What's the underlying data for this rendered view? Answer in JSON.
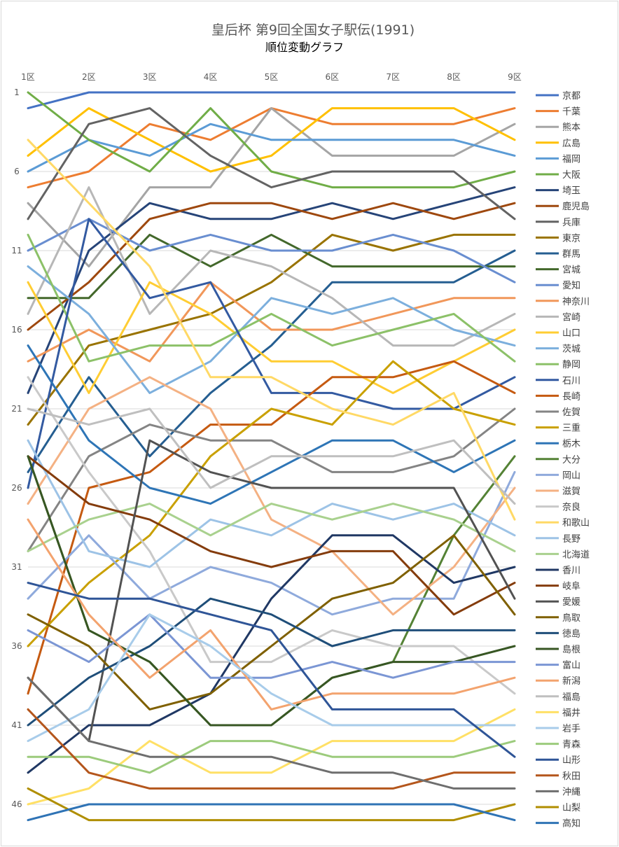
{
  "chart_data": {
    "type": "line",
    "title": "皇后杯 第9回全国女子駅伝(1991)",
    "subtitle": "順位変動グラフ",
    "categories": [
      "1区",
      "2区",
      "3区",
      "4区",
      "5区",
      "6区",
      "7区",
      "8区",
      "9区"
    ],
    "y_ticks": [
      "1",
      "6",
      "11",
      "16",
      "21",
      "26",
      "31",
      "36",
      "41",
      "46"
    ],
    "ylim": [
      1,
      47
    ],
    "y_reversed": true,
    "grid": true,
    "legend_position": "right",
    "series": [
      {
        "name": "京都",
        "color": "#4472C4",
        "values": [
          2,
          1,
          1,
          1,
          1,
          1,
          1,
          1,
          1
        ]
      },
      {
        "name": "千葉",
        "color": "#ED7D31",
        "values": [
          7,
          6,
          3,
          4,
          2,
          3,
          3,
          3,
          2
        ]
      },
      {
        "name": "熊本",
        "color": "#A5A5A5",
        "values": [
          8,
          12,
          7,
          7,
          2,
          5,
          5,
          5,
          3
        ]
      },
      {
        "name": "広島",
        "color": "#FFC000",
        "values": [
          5,
          2,
          4,
          6,
          5,
          2,
          2,
          2,
          4
        ]
      },
      {
        "name": "福岡",
        "color": "#5B9BD5",
        "values": [
          6,
          4,
          5,
          3,
          4,
          4,
          4,
          4,
          5
        ]
      },
      {
        "name": "大阪",
        "color": "#70AD47",
        "values": [
          1,
          4,
          6,
          2,
          6,
          7,
          7,
          7,
          6
        ]
      },
      {
        "name": "埼玉",
        "color": "#264478",
        "values": [
          20,
          11,
          8,
          9,
          9,
          8,
          9,
          8,
          7
        ]
      },
      {
        "name": "鹿児島",
        "color": "#9E480E",
        "values": [
          16,
          13,
          9,
          8,
          8,
          9,
          8,
          9,
          8
        ]
      },
      {
        "name": "兵庫",
        "color": "#636363",
        "values": [
          9,
          3,
          2,
          5,
          7,
          6,
          6,
          6,
          9
        ]
      },
      {
        "name": "東京",
        "color": "#997300",
        "values": [
          22,
          17,
          16,
          15,
          13,
          10,
          11,
          10,
          10
        ]
      },
      {
        "name": "群馬",
        "color": "#255E91",
        "values": [
          25,
          19,
          24,
          20,
          17,
          13,
          13,
          13,
          11
        ]
      },
      {
        "name": "宮城",
        "color": "#43682B",
        "values": [
          14,
          14,
          10,
          12,
          10,
          12,
          12,
          12,
          12
        ]
      },
      {
        "name": "愛知",
        "color": "#698ED0",
        "values": [
          11,
          9,
          11,
          10,
          11,
          11,
          10,
          11,
          13
        ]
      },
      {
        "name": "神奈川",
        "color": "#F1975A",
        "values": [
          18,
          16,
          18,
          13,
          16,
          16,
          15,
          14,
          14
        ]
      },
      {
        "name": "宮崎",
        "color": "#B7B7B7",
        "values": [
          15,
          7,
          15,
          11,
          12,
          14,
          17,
          17,
          15
        ]
      },
      {
        "name": "山口",
        "color": "#FFCD33",
        "values": [
          13,
          20,
          13,
          15,
          18,
          18,
          20,
          18,
          16
        ]
      },
      {
        "name": "茨城",
        "color": "#7CAFDD",
        "values": [
          12,
          15,
          20,
          18,
          14,
          15,
          14,
          16,
          17
        ]
      },
      {
        "name": "静岡",
        "color": "#8CC168",
        "values": [
          10,
          18,
          17,
          17,
          15,
          17,
          16,
          15,
          18
        ]
      },
      {
        "name": "石川",
        "color": "#335AA1",
        "values": [
          26,
          9,
          14,
          13,
          20,
          20,
          21,
          21,
          19
        ]
      },
      {
        "name": "長崎",
        "color": "#C55A11",
        "values": [
          39,
          26,
          25,
          22,
          22,
          19,
          19,
          18,
          20
        ]
      },
      {
        "name": "佐賀",
        "color": "#848484",
        "values": [
          30,
          24,
          22,
          23,
          23,
          25,
          25,
          24,
          21
        ]
      },
      {
        "name": "三重",
        "color": "#C9A000",
        "values": [
          36,
          32,
          29,
          24,
          21,
          22,
          18,
          21,
          22
        ]
      },
      {
        "name": "栃木",
        "color": "#2E75B6",
        "values": [
          17,
          23,
          26,
          27,
          25,
          23,
          23,
          25,
          23
        ]
      },
      {
        "name": "大分",
        "color": "#548235",
        "values": [
          24,
          35,
          37,
          41,
          41,
          38,
          37,
          29,
          24
        ]
      },
      {
        "name": "岡山",
        "color": "#8FAADC",
        "values": [
          33,
          29,
          33,
          31,
          32,
          34,
          33,
          33,
          25
        ]
      },
      {
        "name": "滋賀",
        "color": "#F4B183",
        "values": [
          27,
          21,
          19,
          21,
          28,
          30,
          34,
          31,
          26
        ]
      },
      {
        "name": "奈良",
        "color": "#C9C9C9",
        "values": [
          19,
          25,
          30,
          37,
          37,
          35,
          36,
          36,
          39
        ]
      },
      {
        "name": "和歌山",
        "color": "#FFD966",
        "values": [
          4,
          8,
          12,
          19,
          19,
          21,
          22,
          20,
          28
        ]
      },
      {
        "name": "長野",
        "color": "#9DC3E6",
        "values": [
          23,
          30,
          31,
          28,
          29,
          27,
          28,
          27,
          29
        ]
      },
      {
        "name": "北海道",
        "color": "#A9D18E",
        "values": [
          30,
          28,
          27,
          29,
          27,
          28,
          27,
          28,
          30
        ]
      },
      {
        "name": "香川",
        "color": "#203864",
        "values": [
          44,
          41,
          41,
          39,
          33,
          29,
          29,
          32,
          31
        ]
      },
      {
        "name": "岐阜",
        "color": "#843C0C",
        "values": [
          24,
          27,
          28,
          30,
          31,
          30,
          30,
          34,
          32
        ]
      },
      {
        "name": "愛媛",
        "color": "#525252",
        "values": [
          38,
          42,
          23,
          25,
          26,
          26,
          26,
          26,
          33
        ]
      },
      {
        "name": "鳥取",
        "color": "#7F6000",
        "values": [
          34,
          36,
          40,
          39,
          36,
          33,
          32,
          29,
          34
        ]
      },
      {
        "name": "徳島",
        "color": "#1F4E79",
        "values": [
          41,
          38,
          36,
          33,
          34,
          36,
          35,
          35,
          35
        ]
      },
      {
        "name": "島根",
        "color": "#375623",
        "values": [
          24,
          35,
          37,
          41,
          41,
          38,
          37,
          37,
          36
        ]
      },
      {
        "name": "富山",
        "color": "#7B96D4",
        "values": [
          35,
          37,
          34,
          38,
          38,
          37,
          38,
          37,
          37
        ]
      },
      {
        "name": "新潟",
        "color": "#F3A36E",
        "values": [
          28,
          34,
          38,
          35,
          40,
          39,
          39,
          39,
          38
        ]
      },
      {
        "name": "福島",
        "color": "#BFBFBF",
        "values": [
          21,
          22,
          21,
          26,
          24,
          24,
          24,
          23,
          27
        ]
      },
      {
        "name": "福井",
        "color": "#FFE066",
        "values": [
          46,
          45,
          42,
          44,
          44,
          42,
          42,
          42,
          40
        ]
      },
      {
        "name": "岩手",
        "color": "#A8CCEA",
        "values": [
          42,
          40,
          34,
          36,
          39,
          41,
          41,
          41,
          41
        ]
      },
      {
        "name": "青森",
        "color": "#9CCB7C",
        "values": [
          43,
          43,
          44,
          42,
          42,
          43,
          43,
          43,
          42
        ]
      },
      {
        "name": "山形",
        "color": "#2F5597",
        "values": [
          32,
          33,
          33,
          34,
          35,
          40,
          40,
          40,
          43
        ]
      },
      {
        "name": "秋田",
        "color": "#B4561C",
        "values": [
          40,
          44,
          45,
          45,
          45,
          45,
          45,
          44,
          44
        ]
      },
      {
        "name": "沖縄",
        "color": "#6E6E6E",
        "values": [
          38,
          42,
          43,
          43,
          43,
          44,
          44,
          45,
          45
        ]
      },
      {
        "name": "山梨",
        "color": "#B08E00",
        "values": [
          45,
          47,
          47,
          47,
          47,
          47,
          47,
          47,
          46
        ]
      },
      {
        "name": "高知",
        "color": "#2F73B5",
        "values": [
          47,
          46,
          46,
          46,
          46,
          46,
          46,
          46,
          47
        ]
      }
    ]
  }
}
